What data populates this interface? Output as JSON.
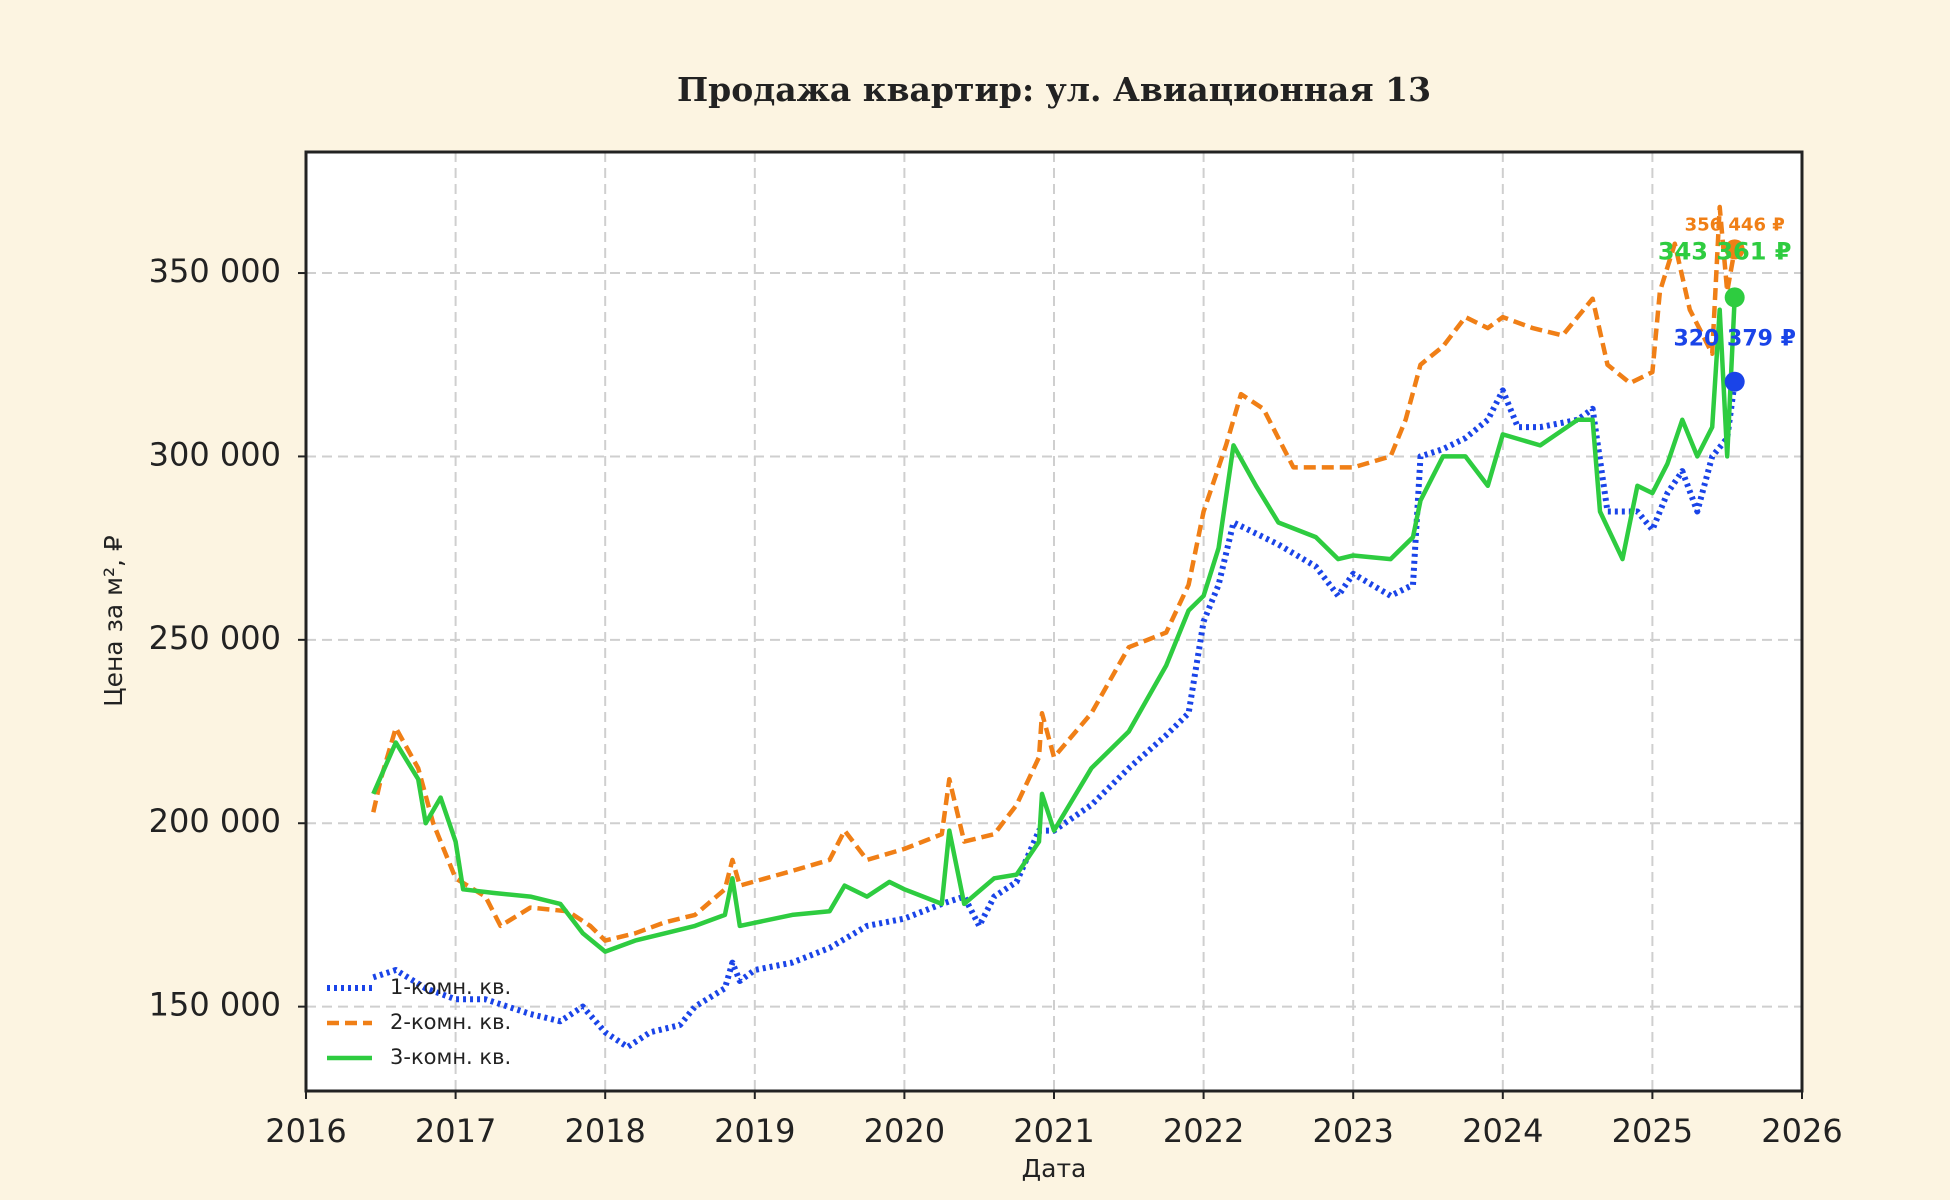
{
  "chart_data": {
    "type": "line",
    "title": "Продажа квартир: ул. Авиационная 13",
    "x_label": "Дата",
    "y_label": "Цена за м², ₽",
    "xlim": [
      2016,
      2026
    ],
    "xticks": [
      2016,
      2017,
      2018,
      2019,
      2020,
      2021,
      2022,
      2023,
      2024,
      2025,
      2026
    ],
    "ylim": [
      127000,
      383000
    ],
    "yticks": [
      {
        "value": 150000,
        "label": "150 000"
      },
      {
        "value": 200000,
        "label": "200 000"
      },
      {
        "value": 250000,
        "label": "250 000"
      },
      {
        "value": 300000,
        "label": "300 000"
      },
      {
        "value": 350000,
        "label": "350 000"
      }
    ],
    "grid": true,
    "legend": "lower left",
    "series": [
      {
        "name": "1-комн. кв.",
        "color": "#1a44e8",
        "dash": "dotted",
        "last_label": "320 379 ₽",
        "x": [
          2016.45,
          2016.6,
          2016.8,
          2017.0,
          2017.2,
          2017.5,
          2017.7,
          2017.85,
          2018.0,
          2018.15,
          2018.3,
          2018.5,
          2018.6,
          2018.8,
          2018.85,
          2018.9,
          2019.0,
          2019.25,
          2019.5,
          2019.75,
          2020.0,
          2020.25,
          2020.4,
          2020.5,
          2020.6,
          2020.75,
          2020.9,
          2021.0,
          2021.25,
          2021.5,
          2021.75,
          2021.9,
          2022.0,
          2022.1,
          2022.2,
          2022.3,
          2022.5,
          2022.75,
          2022.9,
          2023.0,
          2023.25,
          2023.4,
          2023.45,
          2023.6,
          2023.75,
          2023.9,
          2024.0,
          2024.1,
          2024.25,
          2024.5,
          2024.6,
          2024.7,
          2024.9,
          2025.0,
          2025.1,
          2025.2,
          2025.3,
          2025.4,
          2025.5,
          2025.55
        ],
        "values": [
          158000,
          160000,
          155000,
          152000,
          152000,
          148000,
          146000,
          150000,
          143000,
          139000,
          143000,
          145000,
          150000,
          155000,
          162000,
          157000,
          160000,
          162000,
          166000,
          172000,
          174000,
          178000,
          180000,
          172000,
          180000,
          184000,
          198000,
          198000,
          205000,
          215000,
          224000,
          230000,
          255000,
          265000,
          282000,
          280000,
          276000,
          270000,
          262000,
          268000,
          262000,
          265000,
          300000,
          302000,
          305000,
          310000,
          318000,
          308000,
          308000,
          310000,
          313000,
          285000,
          285000,
          280000,
          290000,
          296000,
          285000,
          300000,
          305000,
          320379
        ]
      },
      {
        "name": "2-комн. кв.",
        "color": "#f07f16",
        "dash": "dashed",
        "last_label": "356 446 ₽",
        "x": [
          2016.45,
          2016.5,
          2016.6,
          2016.75,
          2016.85,
          2017.0,
          2017.2,
          2017.3,
          2017.5,
          2017.75,
          2017.9,
          2018.0,
          2018.2,
          2018.4,
          2018.6,
          2018.8,
          2018.85,
          2018.9,
          2019.25,
          2019.5,
          2019.6,
          2019.75,
          2020.0,
          2020.25,
          2020.3,
          2020.4,
          2020.6,
          2020.75,
          2020.9,
          2020.92,
          2021.0,
          2021.25,
          2021.5,
          2021.75,
          2021.9,
          2022.0,
          2022.15,
          2022.25,
          2022.4,
          2022.5,
          2022.6,
          2022.9,
          2023.0,
          2023.25,
          2023.35,
          2023.45,
          2023.6,
          2023.75,
          2023.9,
          2024.0,
          2024.2,
          2024.4,
          2024.6,
          2024.7,
          2024.85,
          2025.0,
          2025.05,
          2025.15,
          2025.25,
          2025.4,
          2025.45,
          2025.5,
          2025.55
        ],
        "values": [
          203000,
          212000,
          226000,
          215000,
          200000,
          185000,
          180000,
          172000,
          177000,
          176000,
          172000,
          168000,
          170000,
          173000,
          175000,
          182000,
          190000,
          183000,
          187000,
          190000,
          198000,
          190000,
          193000,
          197000,
          212000,
          195000,
          197000,
          205000,
          218000,
          230000,
          218000,
          230000,
          248000,
          252000,
          265000,
          285000,
          303000,
          317000,
          313000,
          305000,
          297000,
          297000,
          297000,
          300000,
          310000,
          325000,
          330000,
          338000,
          335000,
          338000,
          335000,
          333000,
          343000,
          325000,
          320000,
          323000,
          345000,
          358000,
          340000,
          328000,
          368000,
          345000,
          356446
        ]
      },
      {
        "name": "3-комн. кв.",
        "color": "#2ecc40",
        "dash": "solid",
        "last_label": "343 361 ₽",
        "x": [
          2016.45,
          2016.6,
          2016.75,
          2016.8,
          2016.9,
          2017.0,
          2017.05,
          2017.25,
          2017.5,
          2017.7,
          2017.85,
          2018.0,
          2018.2,
          2018.4,
          2018.6,
          2018.8,
          2018.85,
          2018.9,
          2019.25,
          2019.5,
          2019.6,
          2019.75,
          2019.9,
          2020.0,
          2020.25,
          2020.3,
          2020.4,
          2020.6,
          2020.75,
          2020.9,
          2020.92,
          2021.0,
          2021.25,
          2021.5,
          2021.75,
          2021.9,
          2022.0,
          2022.1,
          2022.2,
          2022.35,
          2022.5,
          2022.75,
          2022.9,
          2023.0,
          2023.25,
          2023.4,
          2023.45,
          2023.6,
          2023.75,
          2023.9,
          2024.0,
          2024.25,
          2024.5,
          2024.6,
          2024.65,
          2024.8,
          2024.9,
          2025.0,
          2025.1,
          2025.2,
          2025.3,
          2025.4,
          2025.45,
          2025.5,
          2025.55
        ],
        "values": [
          208000,
          222000,
          212000,
          200000,
          207000,
          195000,
          182000,
          181000,
          180000,
          178000,
          170000,
          165000,
          168000,
          170000,
          172000,
          175000,
          185000,
          172000,
          175000,
          176000,
          183000,
          180000,
          184000,
          182000,
          178000,
          198000,
          178000,
          185000,
          186000,
          195000,
          208000,
          198000,
          215000,
          225000,
          243000,
          258000,
          262000,
          275000,
          303000,
          292000,
          282000,
          278000,
          272000,
          273000,
          272000,
          278000,
          288000,
          300000,
          300000,
          292000,
          306000,
          303000,
          310000,
          310000,
          285000,
          272000,
          292000,
          290000,
          298000,
          310000,
          300000,
          308000,
          340000,
          300000,
          343361
        ]
      }
    ]
  }
}
